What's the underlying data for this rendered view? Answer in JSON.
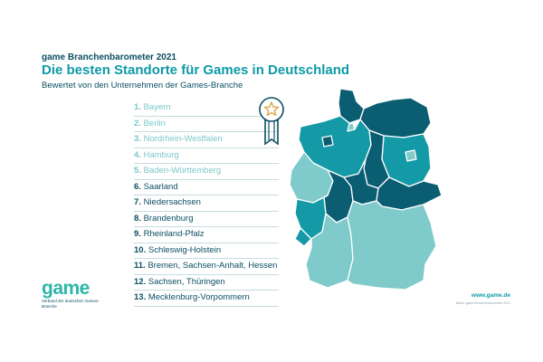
{
  "header": {
    "eyebrow": "game Branchenbarometer 2021",
    "title": "Die besten Standorte für Games in Deutschland",
    "subtitle": "Bewertet von den Unternehmen der Games-Branche"
  },
  "ranking": [
    {
      "rank": "1.",
      "name": "Bayern",
      "tier": "pastel"
    },
    {
      "rank": "2.",
      "name": "Berlin",
      "tier": "pastel"
    },
    {
      "rank": "3.",
      "name": "Nordrhein-Westfalen",
      "tier": "pastel"
    },
    {
      "rank": "4.",
      "name": "Hamburg",
      "tier": "pastel"
    },
    {
      "rank": "5.",
      "name": "Baden-Württemberg",
      "tier": "pastel"
    },
    {
      "rank": "6.",
      "name": "Saarland",
      "tier": "strong"
    },
    {
      "rank": "7.",
      "name": "Niedersachsen",
      "tier": "strong"
    },
    {
      "rank": "8.",
      "name": "Brandenburg",
      "tier": "strong"
    },
    {
      "rank": "9.",
      "name": "Rheinland-Pfalz",
      "tier": "strong"
    },
    {
      "rank": "10.",
      "name": "Schleswig-Holstein",
      "tier": "strong"
    },
    {
      "rank": "11.",
      "name": "Bremen, Sachsen-Anhalt, Hessen",
      "tier": "strong"
    },
    {
      "rank": "12.",
      "name": "Sachsen, Thüringen",
      "tier": "strong"
    },
    {
      "rank": "13.",
      "name": "Mecklenburg-Vorpommern",
      "tier": "strong"
    }
  ],
  "logo": {
    "word": "game",
    "subline": "Verband der deutschen Games-Branche"
  },
  "footer": {
    "website": "www.game.de",
    "credit": "Basis: game Branchenbarometer 2021"
  },
  "colors": {
    "pastel": "#7cc7c7",
    "mid": "#0e9aa7",
    "dark": "#0b4f63",
    "brand": "#2db6a8"
  },
  "icons": {
    "badge": "award-rosette-star-icon",
    "map": "germany-states-map"
  }
}
